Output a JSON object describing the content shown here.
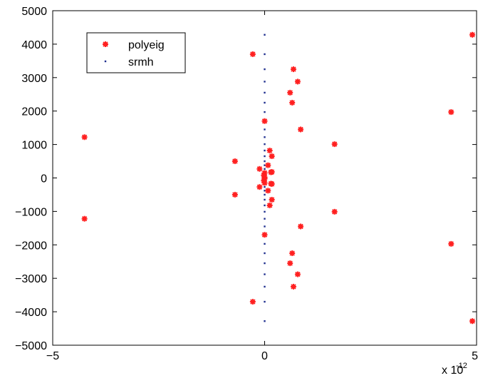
{
  "chart_data": {
    "type": "scatter",
    "title": "",
    "xlabel": "",
    "ylabel": "",
    "x_scale_multiplier": "x 10",
    "x_scale_exponent": "-12",
    "xlim": [
      -5,
      5
    ],
    "ylim": [
      -5000,
      5000
    ],
    "x_ticks": [
      -5,
      0,
      5
    ],
    "x_tick_labels": [
      "−5",
      "0",
      "5"
    ],
    "y_ticks": [
      -5000,
      -4000,
      -3000,
      -2000,
      -1000,
      0,
      1000,
      2000,
      3000,
      4000,
      5000
    ],
    "y_tick_labels": [
      "−5000",
      "−4000",
      "−3000",
      "−2000",
      "−1000",
      "0",
      "1000",
      "2000",
      "3000",
      "4000",
      "5000"
    ],
    "grid": false,
    "legend_position": "top-left",
    "series": [
      {
        "name": "polyeig",
        "color": "#ff2020",
        "marker": "star",
        "points": [
          [
            -4.25,
            1220
          ],
          [
            -4.25,
            -1220
          ],
          [
            -0.7,
            500
          ],
          [
            -0.7,
            -500
          ],
          [
            -0.28,
            3700
          ],
          [
            -0.28,
            -3700
          ],
          [
            -0.12,
            270
          ],
          [
            -0.12,
            -270
          ],
          [
            0.0,
            1700
          ],
          [
            0.0,
            -1700
          ],
          [
            -0.02,
            80
          ],
          [
            -0.02,
            -80
          ],
          [
            0.0,
            20
          ],
          [
            0.0,
            -20
          ],
          [
            0.0,
            150
          ],
          [
            0.0,
            -150
          ],
          [
            0.08,
            380
          ],
          [
            0.08,
            -380
          ],
          [
            0.12,
            820
          ],
          [
            0.12,
            -820
          ],
          [
            0.15,
            170
          ],
          [
            0.15,
            -170
          ],
          [
            0.17,
            650
          ],
          [
            0.17,
            -650
          ],
          [
            0.17,
            -180
          ],
          [
            0.17,
            180
          ],
          [
            0.6,
            2550
          ],
          [
            0.6,
            -2550
          ],
          [
            0.65,
            2250
          ],
          [
            0.65,
            -2250
          ],
          [
            0.68,
            3250
          ],
          [
            0.68,
            -3250
          ],
          [
            0.78,
            2880
          ],
          [
            0.78,
            -2880
          ],
          [
            0.85,
            1450
          ],
          [
            0.85,
            -1450
          ],
          [
            1.65,
            1010
          ],
          [
            1.65,
            -1010
          ],
          [
            4.4,
            1970
          ],
          [
            4.4,
            -1970
          ],
          [
            4.9,
            4280
          ],
          [
            4.9,
            -4280
          ]
        ]
      },
      {
        "name": "srmh",
        "color": "#1f2f8f",
        "marker": "dot",
        "x": 0,
        "y_values": [
          -4280,
          -3700,
          -3250,
          -2880,
          -2550,
          -2250,
          -1970,
          -1700,
          -1450,
          -1220,
          -1010,
          -820,
          -650,
          -500,
          -380,
          -270,
          -170,
          -80,
          0,
          80,
          170,
          270,
          380,
          500,
          650,
          820,
          1010,
          1220,
          1450,
          1700,
          1970,
          2250,
          2550,
          2880,
          3250,
          3700,
          4280
        ]
      }
    ]
  }
}
